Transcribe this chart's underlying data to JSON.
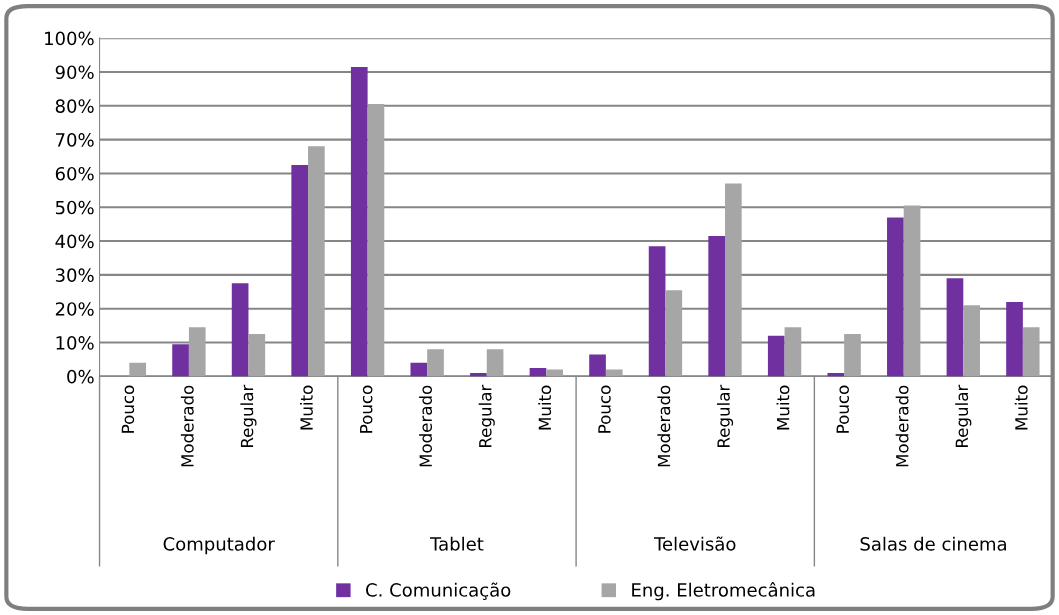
{
  "chart_data": {
    "type": "bar",
    "categories": [
      "Pouco",
      "Moderado",
      "Regular",
      "Muito",
      "Pouco",
      "Moderado",
      "Regular",
      "Muito",
      "Pouco",
      "Moderado",
      "Regular",
      "Muito",
      "Pouco",
      "Moderado",
      "Regular",
      "Muito"
    ],
    "annotations": [
      "Computador",
      "Tablet",
      "Televisão",
      "Salas de cinema"
    ],
    "series": [
      {
        "name": "C. Comunicação",
        "color": "#7030a0",
        "values": [
          0,
          9.5,
          27.5,
          62.5,
          91.5,
          4,
          1,
          2.5,
          6.5,
          38.5,
          41.5,
          12,
          1,
          47,
          29,
          22
        ]
      },
      {
        "name": "Eng. Eletromecânica",
        "color": "#a6a6a6",
        "values": [
          4,
          14.5,
          12.5,
          68,
          80.5,
          8,
          8,
          2,
          2,
          25.5,
          57,
          14.5,
          12.5,
          50.5,
          21,
          14.5
        ]
      }
    ],
    "ylim": [
      0,
      100
    ],
    "yticks": [
      {
        "value": 0,
        "label": "0%"
      },
      {
        "value": 10,
        "label": "10%"
      },
      {
        "value": 20,
        "label": "20%"
      },
      {
        "value": 30,
        "label": "30%"
      },
      {
        "value": 40,
        "label": "40%"
      },
      {
        "value": 50,
        "label": "50%"
      },
      {
        "value": 60,
        "label": "60%"
      },
      {
        "value": 70,
        "label": "70%"
      },
      {
        "value": 80,
        "label": "80%"
      },
      {
        "value": 90,
        "label": "90%"
      },
      {
        "value": 100,
        "label": "100%"
      }
    ],
    "grid": "y",
    "legend": "bottom"
  }
}
